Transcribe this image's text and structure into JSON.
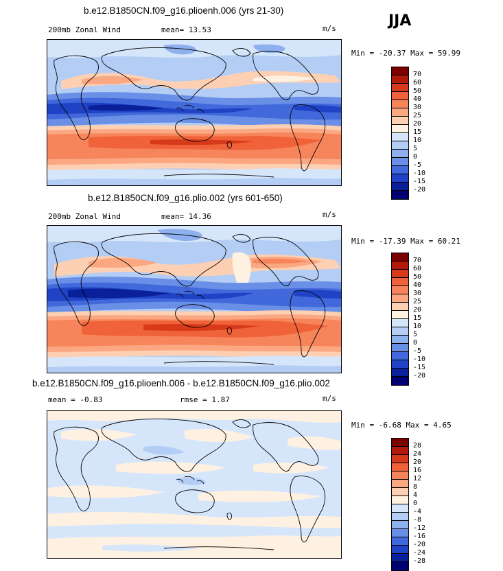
{
  "season": "JJA",
  "panels": [
    {
      "title": "b.e12.B1850CN.f09_g16.plioenh.006 (yrs 21-30)",
      "left_label": "200mb Zonal Wind",
      "center_label": "mean=  13.53",
      "units": "m/s",
      "minmax": "Min = -20.37 Max =  59.99",
      "levels": [
        "70",
        "60",
        "50",
        "40",
        "30",
        "25",
        "20",
        "15",
        "10",
        "5",
        "0",
        "-5",
        "-10",
        "-15",
        "-20"
      ],
      "colors": [
        "#7a0000",
        "#b11a0a",
        "#d73a1a",
        "#f0633a",
        "#f7855b",
        "#fba882",
        "#fdd0b3",
        "#fff1e2",
        "#d6e6fa",
        "#b3cdf5",
        "#8eb0ee",
        "#6a8fe6",
        "#4169db",
        "#1f43c4",
        "#0a1f9a",
        "#000070"
      ]
    },
    {
      "title": "b.e12.B1850CN.f09_g16.plio.002 (yrs 601-650)",
      "left_label": "200mb Zonal Wind",
      "center_label": "mean=  14.36",
      "units": "m/s",
      "minmax": "Min = -17.39 Max =  60.21",
      "levels": [
        "70",
        "60",
        "50",
        "40",
        "30",
        "25",
        "20",
        "15",
        "10",
        "5",
        "0",
        "-5",
        "-10",
        "-15",
        "-20"
      ],
      "colors": [
        "#7a0000",
        "#b11a0a",
        "#d73a1a",
        "#f0633a",
        "#f7855b",
        "#fba882",
        "#fdd0b3",
        "#fff1e2",
        "#d6e6fa",
        "#b3cdf5",
        "#8eb0ee",
        "#6a8fe6",
        "#4169db",
        "#1f43c4",
        "#0a1f9a",
        "#000070"
      ]
    },
    {
      "title": "b.e12.B1850CN.f09_g16.plioenh.006 - b.e12.B1850CN.f09_g16.plio.002",
      "left_label": "mean =  -0.83",
      "center_label": "rmse =   1.87",
      "units": "m/s",
      "minmax": "Min =  -6.68 Max =   4.65",
      "levels": [
        "28",
        "24",
        "20",
        "16",
        "12",
        "8",
        "4",
        "0",
        "-4",
        "-8",
        "-12",
        "-16",
        "-20",
        "-24",
        "-28"
      ],
      "colors": [
        "#7a0000",
        "#b11a0a",
        "#d73a1a",
        "#f0633a",
        "#f7855b",
        "#fba882",
        "#fdd0b3",
        "#fff1e2",
        "#d6e6fa",
        "#b3cdf5",
        "#8eb0ee",
        "#6a8fe6",
        "#4169db",
        "#1f43c4",
        "#0a1f9a",
        "#000070"
      ]
    }
  ]
}
